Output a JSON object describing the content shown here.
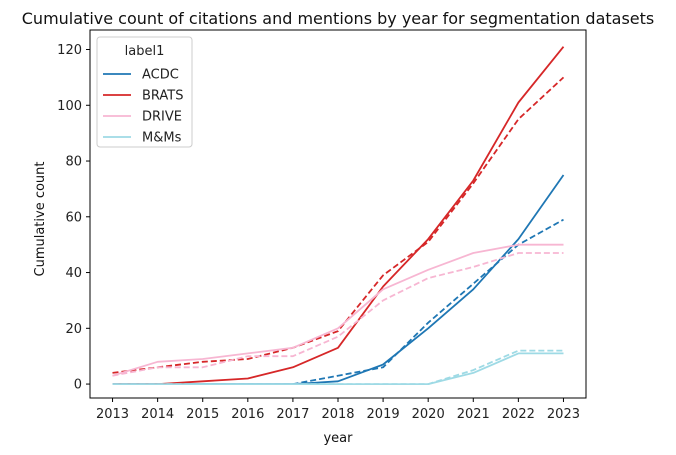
{
  "chart_data": {
    "type": "line",
    "title": "Cumulative count of citations and mentions by year for segmentation datasets",
    "xlabel": "year",
    "ylabel": "Cumulative count",
    "x": [
      2013,
      2014,
      2015,
      2016,
      2017,
      2018,
      2019,
      2020,
      2021,
      2022,
      2023
    ],
    "xlim": [
      2012.5,
      2023.5
    ],
    "ylim": [
      -5,
      127
    ],
    "yticks": [
      0,
      20,
      40,
      60,
      80,
      100,
      120
    ],
    "grid": false,
    "legend": {
      "title": "label1",
      "placement": "top-left",
      "entries": [
        "ACDC",
        "BRATS",
        "DRIVE",
        "M&Ms"
      ]
    },
    "series": [
      {
        "name": "ACDC",
        "style": "solid",
        "color": "#1f77b4",
        "values": [
          0,
          0,
          0,
          0,
          0,
          1,
          7,
          20,
          34,
          52,
          75
        ]
      },
      {
        "name": "ACDC",
        "style": "dashed",
        "color": "#1f77b4",
        "values": [
          0,
          0,
          0,
          0,
          0,
          3,
          6,
          22,
          36,
          50,
          59
        ]
      },
      {
        "name": "BRATS",
        "style": "solid",
        "color": "#d62728",
        "values": [
          0,
          0,
          1,
          2,
          6,
          13,
          35,
          52,
          73,
          101,
          121
        ]
      },
      {
        "name": "BRATS",
        "style": "dashed",
        "color": "#d62728",
        "values": [
          4,
          6,
          8,
          9,
          13,
          19,
          39,
          51,
          72,
          95,
          110
        ]
      },
      {
        "name": "DRIVE",
        "style": "solid",
        "color": "#f7b6d2",
        "values": [
          3,
          8,
          9,
          11,
          13,
          20,
          34,
          41,
          47,
          50,
          50
        ]
      },
      {
        "name": "DRIVE",
        "style": "dashed",
        "color": "#f7b6d2",
        "values": [
          3,
          6,
          6,
          10,
          10,
          17,
          30,
          38,
          42,
          47,
          47
        ]
      },
      {
        "name": "M&Ms",
        "style": "solid",
        "color": "#9edae5",
        "values": [
          0,
          0,
          0,
          0,
          0,
          0,
          0,
          0,
          4,
          11,
          11
        ]
      },
      {
        "name": "M&Ms",
        "style": "dashed",
        "color": "#9edae5",
        "values": [
          0,
          0,
          0,
          0,
          0,
          0,
          0,
          0,
          5,
          12,
          12
        ]
      }
    ]
  }
}
